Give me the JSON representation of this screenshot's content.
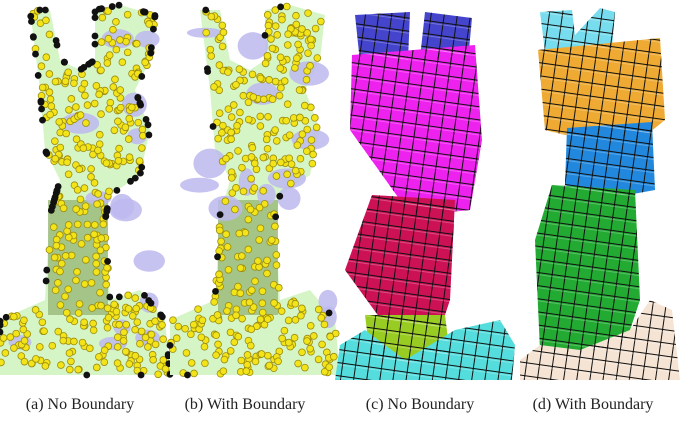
{
  "panels": [
    {
      "caption": "(a) No Boundary"
    },
    {
      "caption": "(b) With Boundary"
    },
    {
      "caption": "(c) No Boundary"
    },
    {
      "caption": "(d) With Boundary"
    }
  ]
}
